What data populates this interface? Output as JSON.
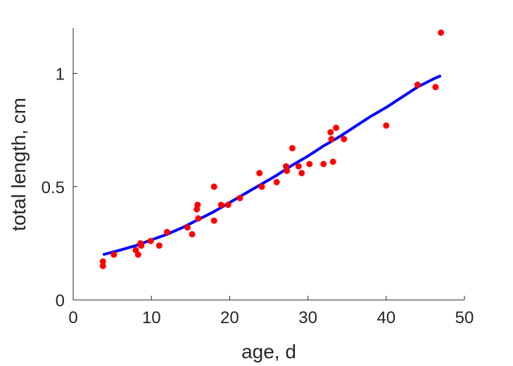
{
  "chart_data": {
    "type": "scatter",
    "xlabel": "age, d",
    "ylabel": "total length, cm",
    "xlim": [
      0,
      50
    ],
    "ylim": [
      0,
      1.2
    ],
    "x_ticks": [
      0,
      10,
      20,
      30,
      40,
      50
    ],
    "y_ticks": [
      0,
      0.5,
      1
    ],
    "x_tick_labels": [
      "0",
      "10",
      "20",
      "30",
      "40",
      "50"
    ],
    "y_tick_labels": [
      "0",
      "0.5",
      "1"
    ],
    "grid": false,
    "series": [
      {
        "type": "scatter",
        "color": "#ff0000",
        "points": [
          [
            3.8,
            0.17
          ],
          [
            3.8,
            0.15
          ],
          [
            5.2,
            0.2
          ],
          [
            8.0,
            0.22
          ],
          [
            8.3,
            0.2
          ],
          [
            8.6,
            0.25
          ],
          [
            8.7,
            0.24
          ],
          [
            9.9,
            0.26
          ],
          [
            11.0,
            0.24
          ],
          [
            12.0,
            0.3
          ],
          [
            14.6,
            0.32
          ],
          [
            15.2,
            0.29
          ],
          [
            15.8,
            0.4
          ],
          [
            15.9,
            0.42
          ],
          [
            16.0,
            0.36
          ],
          [
            18.0,
            0.35
          ],
          [
            18.0,
            0.5
          ],
          [
            18.9,
            0.42
          ],
          [
            19.8,
            0.42
          ],
          [
            21.3,
            0.45
          ],
          [
            23.8,
            0.56
          ],
          [
            24.1,
            0.5
          ],
          [
            26.0,
            0.52
          ],
          [
            27.2,
            0.59
          ],
          [
            27.3,
            0.57
          ],
          [
            28.0,
            0.67
          ],
          [
            28.8,
            0.59
          ],
          [
            29.2,
            0.56
          ],
          [
            30.2,
            0.6
          ],
          [
            32.0,
            0.6
          ],
          [
            32.9,
            0.74
          ],
          [
            33.0,
            0.71
          ],
          [
            33.2,
            0.61
          ],
          [
            33.6,
            0.76
          ],
          [
            34.6,
            0.71
          ],
          [
            40.0,
            0.77
          ],
          [
            44.0,
            0.95
          ],
          [
            46.3,
            0.94
          ],
          [
            47.0,
            1.18
          ]
        ]
      },
      {
        "type": "line",
        "color": "#0000ff",
        "points": [
          [
            3.8,
            0.2
          ],
          [
            6,
            0.22
          ],
          [
            8,
            0.24
          ],
          [
            10,
            0.265
          ],
          [
            12,
            0.29
          ],
          [
            14,
            0.32
          ],
          [
            16,
            0.355
          ],
          [
            18,
            0.39
          ],
          [
            20,
            0.43
          ],
          [
            22,
            0.47
          ],
          [
            24,
            0.51
          ],
          [
            26,
            0.55
          ],
          [
            28,
            0.595
          ],
          [
            30,
            0.635
          ],
          [
            32,
            0.68
          ],
          [
            34,
            0.72
          ],
          [
            36,
            0.765
          ],
          [
            38,
            0.81
          ],
          [
            40,
            0.85
          ],
          [
            42,
            0.895
          ],
          [
            44,
            0.94
          ],
          [
            46,
            0.975
          ],
          [
            47,
            0.99
          ]
        ]
      }
    ]
  }
}
